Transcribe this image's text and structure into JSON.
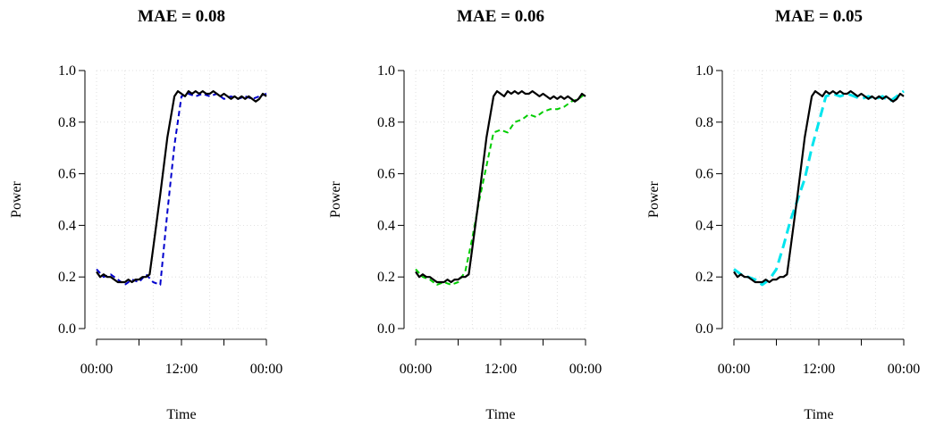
{
  "chart_data": [
    {
      "type": "line",
      "title": "MAE = 0.08",
      "xlabel": "Time",
      "ylabel": "Power",
      "ylim": [
        0,
        1.0
      ],
      "y_ticks": [
        "0.0",
        "0.2",
        "0.4",
        "0.6",
        "0.8",
        "1.0"
      ],
      "x_tick_labels": [
        "00:00",
        "12:00",
        "00:00"
      ],
      "x_range_hours": [
        0,
        24
      ],
      "grid": true,
      "series": [
        {
          "color": "#000000",
          "dash": "solid",
          "x": [
            0,
            0.5,
            1,
            1.5,
            2,
            2.5,
            3,
            3.5,
            4,
            4.5,
            5,
            5.5,
            6,
            6.5,
            7,
            7.5,
            8,
            9,
            10,
            11,
            11.5,
            12,
            12.5,
            13,
            13.5,
            14,
            14.5,
            15,
            15.5,
            16,
            16.5,
            17,
            17.5,
            18,
            18.5,
            19,
            19.5,
            20,
            20.5,
            21,
            21.5,
            22,
            22.5,
            23,
            23.5,
            24
          ],
          "values": [
            0.22,
            0.2,
            0.21,
            0.2,
            0.2,
            0.19,
            0.18,
            0.18,
            0.18,
            0.19,
            0.18,
            0.19,
            0.19,
            0.2,
            0.2,
            0.21,
            0.31,
            0.52,
            0.74,
            0.9,
            0.92,
            0.91,
            0.9,
            0.92,
            0.91,
            0.92,
            0.91,
            0.92,
            0.91,
            0.91,
            0.92,
            0.91,
            0.9,
            0.91,
            0.9,
            0.89,
            0.9,
            0.89,
            0.9,
            0.89,
            0.9,
            0.89,
            0.88,
            0.89,
            0.91,
            0.9
          ]
        },
        {
          "color": "#0000cd",
          "dash": "dashed",
          "x": [
            0,
            1,
            2,
            3,
            4,
            5,
            6,
            7,
            8,
            9,
            10,
            11,
            12,
            13,
            14,
            15,
            16,
            17,
            18,
            19,
            20,
            21,
            22,
            23,
            24
          ],
          "values": [
            0.23,
            0.2,
            0.21,
            0.19,
            0.17,
            0.19,
            0.18,
            0.21,
            0.18,
            0.17,
            0.45,
            0.71,
            0.9,
            0.91,
            0.9,
            0.91,
            0.9,
            0.91,
            0.89,
            0.9,
            0.89,
            0.9,
            0.89,
            0.9,
            0.91
          ]
        }
      ]
    },
    {
      "type": "line",
      "title": "MAE = 0.06",
      "xlabel": "Time",
      "ylabel": "Power",
      "ylim": [
        0,
        1.0
      ],
      "y_ticks": [
        "0.0",
        "0.2",
        "0.4",
        "0.6",
        "0.8",
        "1.0"
      ],
      "x_tick_labels": [
        "00:00",
        "12:00",
        "00:00"
      ],
      "x_range_hours": [
        0,
        24
      ],
      "grid": true,
      "series": [
        {
          "color": "#000000",
          "dash": "solid",
          "x": [
            0,
            0.5,
            1,
            1.5,
            2,
            2.5,
            3,
            3.5,
            4,
            4.5,
            5,
            5.5,
            6,
            6.5,
            7,
            7.5,
            8,
            9,
            10,
            11,
            11.5,
            12,
            12.5,
            13,
            13.5,
            14,
            14.5,
            15,
            15.5,
            16,
            16.5,
            17,
            17.5,
            18,
            18.5,
            19,
            19.5,
            20,
            20.5,
            21,
            21.5,
            22,
            22.5,
            23,
            23.5,
            24
          ],
          "values": [
            0.22,
            0.2,
            0.21,
            0.2,
            0.2,
            0.19,
            0.18,
            0.18,
            0.18,
            0.19,
            0.18,
            0.19,
            0.19,
            0.2,
            0.2,
            0.21,
            0.31,
            0.52,
            0.74,
            0.9,
            0.92,
            0.91,
            0.9,
            0.92,
            0.91,
            0.92,
            0.91,
            0.92,
            0.91,
            0.91,
            0.92,
            0.91,
            0.9,
            0.91,
            0.9,
            0.89,
            0.9,
            0.89,
            0.9,
            0.89,
            0.9,
            0.89,
            0.88,
            0.89,
            0.91,
            0.9
          ]
        },
        {
          "color": "#00cd00",
          "dash": "dashed",
          "x": [
            0,
            1,
            2,
            3,
            4,
            5,
            6,
            7,
            8,
            9,
            10,
            11,
            12,
            13,
            14,
            15,
            16,
            17,
            18,
            19,
            20,
            21,
            22,
            23,
            24
          ],
          "values": [
            0.23,
            0.2,
            0.19,
            0.17,
            0.18,
            0.17,
            0.18,
            0.22,
            0.35,
            0.5,
            0.63,
            0.76,
            0.77,
            0.76,
            0.8,
            0.81,
            0.83,
            0.82,
            0.84,
            0.85,
            0.85,
            0.86,
            0.88,
            0.89,
            0.91
          ]
        }
      ]
    },
    {
      "type": "line",
      "title": "MAE = 0.05",
      "xlabel": "Time",
      "ylabel": "Power",
      "ylim": [
        0,
        1.0
      ],
      "y_ticks": [
        "0.0",
        "0.2",
        "0.4",
        "0.6",
        "0.8",
        "1.0"
      ],
      "x_tick_labels": [
        "00:00",
        "12:00",
        "00:00"
      ],
      "x_range_hours": [
        0,
        24
      ],
      "grid": true,
      "series": [
        {
          "color": "#000000",
          "dash": "solid",
          "x": [
            0,
            0.5,
            1,
            1.5,
            2,
            2.5,
            3,
            3.5,
            4,
            4.5,
            5,
            5.5,
            6,
            6.5,
            7,
            7.5,
            8,
            9,
            10,
            11,
            11.5,
            12,
            12.5,
            13,
            13.5,
            14,
            14.5,
            15,
            15.5,
            16,
            16.5,
            17,
            17.5,
            18,
            18.5,
            19,
            19.5,
            20,
            20.5,
            21,
            21.5,
            22,
            22.5,
            23,
            23.5,
            24
          ],
          "values": [
            0.22,
            0.2,
            0.21,
            0.2,
            0.2,
            0.19,
            0.18,
            0.18,
            0.18,
            0.19,
            0.18,
            0.19,
            0.19,
            0.2,
            0.2,
            0.21,
            0.31,
            0.52,
            0.74,
            0.9,
            0.92,
            0.91,
            0.9,
            0.92,
            0.91,
            0.92,
            0.91,
            0.92,
            0.91,
            0.91,
            0.92,
            0.91,
            0.9,
            0.91,
            0.9,
            0.89,
            0.9,
            0.89,
            0.9,
            0.89,
            0.9,
            0.89,
            0.88,
            0.89,
            0.91,
            0.9
          ]
        },
        {
          "color": "#00e5ee",
          "dash": "longdash",
          "x": [
            0,
            1,
            2,
            3,
            4,
            5,
            6,
            7,
            8,
            9,
            10,
            11,
            12,
            13,
            14,
            15,
            16,
            17,
            18,
            19,
            20,
            21,
            22,
            23,
            24
          ],
          "values": [
            0.23,
            0.21,
            0.2,
            0.19,
            0.17,
            0.19,
            0.23,
            0.32,
            0.42,
            0.5,
            0.58,
            0.7,
            0.8,
            0.9,
            0.91,
            0.9,
            0.91,
            0.9,
            0.89,
            0.9,
            0.89,
            0.9,
            0.88,
            0.9,
            0.92
          ]
        }
      ]
    }
  ]
}
